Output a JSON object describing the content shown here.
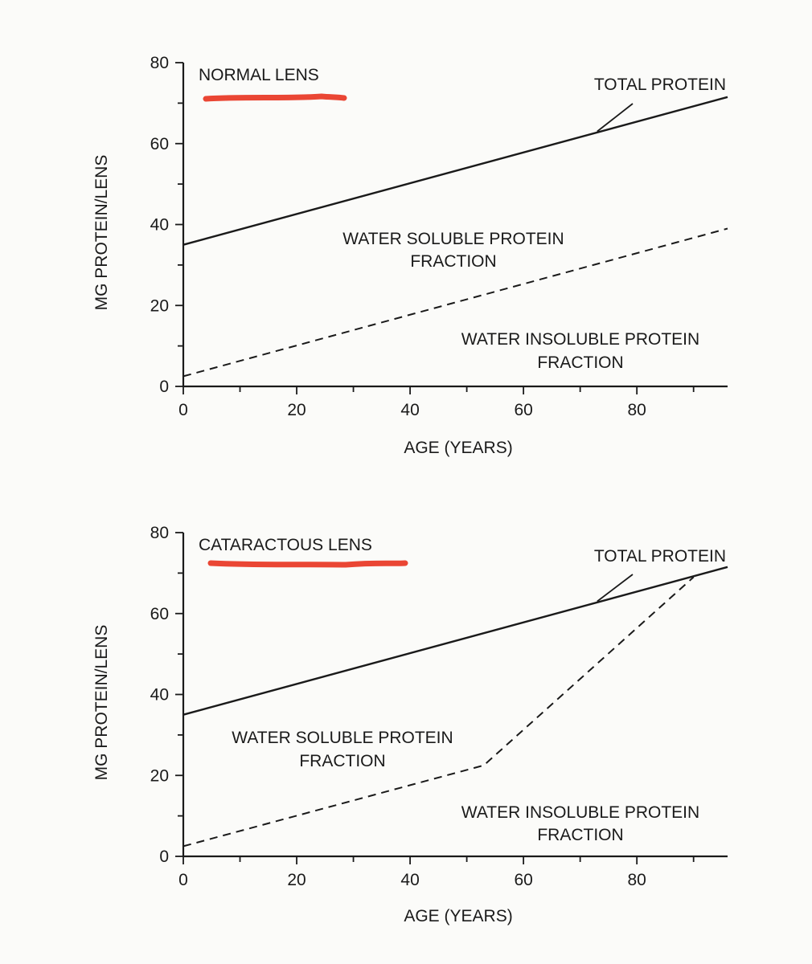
{
  "colors": {
    "background": "#fbfbf9",
    "ink": "#1a1a1a",
    "highlight": "#e8321e"
  },
  "chart_data": [
    {
      "type": "line",
      "title": "NORMAL LENS",
      "xlabel": "AGE (YEARS)",
      "ylabel": "MG PROTEIN/LENS",
      "xlim": [
        0,
        96
      ],
      "ylim": [
        0,
        80
      ],
      "x_ticks": [
        0,
        20,
        40,
        60,
        80
      ],
      "y_ticks": [
        0,
        20,
        40,
        60,
        80
      ],
      "x_tick_labels": [
        "0",
        "20",
        "40",
        "60",
        "80"
      ],
      "y_tick_labels": [
        "0",
        "20",
        "40",
        "60",
        "80"
      ],
      "grid": false,
      "series": [
        {
          "name": "TOTAL PROTEIN",
          "style": "solid",
          "x": [
            0,
            96
          ],
          "y": [
            35,
            71.5
          ]
        },
        {
          "style": "dashed",
          "x": [
            0,
            96
          ],
          "y": [
            2.5,
            39
          ]
        }
      ],
      "annotations": [
        {
          "text": "TOTAL PROTEIN",
          "pointer_to": {
            "x": 73,
            "y": 63
          }
        },
        {
          "lines": [
            "WATER SOLUBLE PROTEIN",
            "FRACTION"
          ]
        },
        {
          "lines": [
            "WATER INSOLUBLE PROTEIN",
            "FRACTION"
          ]
        }
      ]
    },
    {
      "type": "line",
      "title": "CATARACTOUS LENS",
      "xlabel": "AGE (YEARS)",
      "ylabel": "MG PROTEIN/LENS",
      "xlim": [
        0,
        96
      ],
      "ylim": [
        0,
        80
      ],
      "x_ticks": [
        0,
        20,
        40,
        60,
        80
      ],
      "y_ticks": [
        0,
        20,
        40,
        60,
        80
      ],
      "x_tick_labels": [
        "0",
        "20",
        "40",
        "60",
        "80"
      ],
      "y_tick_labels": [
        "0",
        "20",
        "40",
        "60",
        "80"
      ],
      "grid": false,
      "series": [
        {
          "name": "TOTAL PROTEIN",
          "style": "solid",
          "x": [
            0,
            96
          ],
          "y": [
            35,
            71.5
          ]
        },
        {
          "style": "dashed",
          "x": [
            0,
            53,
            90
          ],
          "y": [
            2.5,
            22.5,
            69
          ]
        }
      ],
      "annotations": [
        {
          "text": "TOTAL PROTEIN",
          "pointer_to": {
            "x": 73,
            "y": 63
          }
        },
        {
          "lines": [
            "WATER SOLUBLE PROTEIN",
            "FRACTION"
          ]
        },
        {
          "lines": [
            "WATER INSOLUBLE PROTEIN",
            "FRACTION"
          ]
        }
      ]
    }
  ]
}
